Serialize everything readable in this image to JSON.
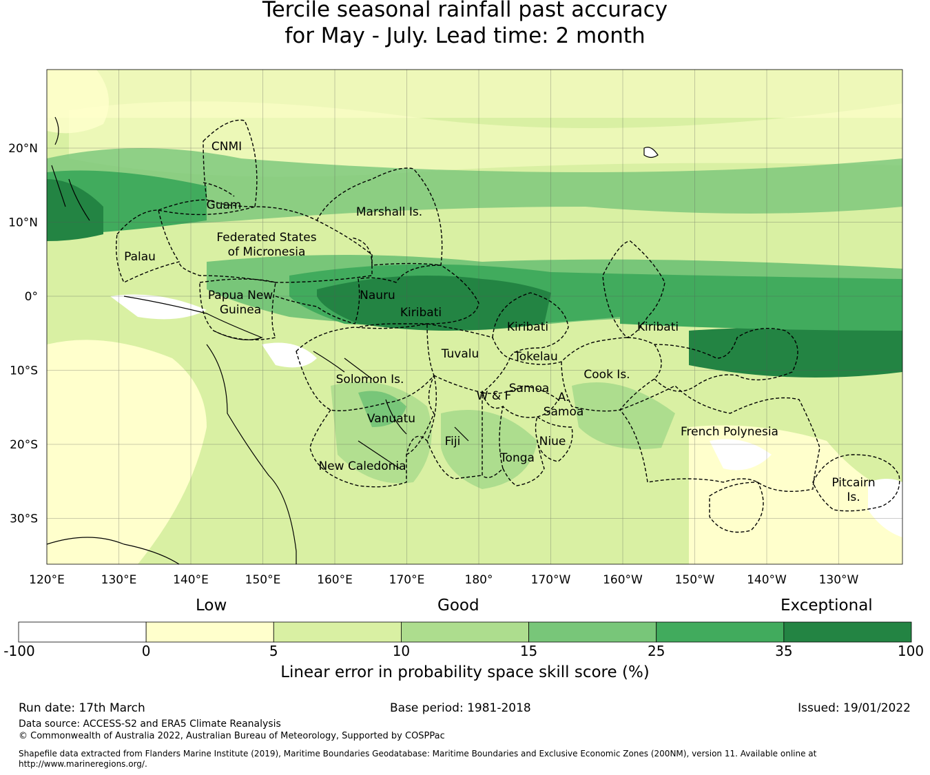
{
  "title_line1": "Tercile seasonal rainfall past accuracy",
  "title_line2": "for May - July. Lead time: 2 month",
  "map": {
    "lon_labels": [
      "120°E",
      "130°E",
      "140°E",
      "150°E",
      "160°E",
      "170°E",
      "180°",
      "170°W",
      "160°W",
      "150°W",
      "140°W",
      "130°W"
    ],
    "lat_labels": [
      "20°N",
      "10°N",
      "0°",
      "10°S",
      "20°S",
      "30°S"
    ],
    "regions": [
      "CNMI",
      "Guam",
      "Marshall Is.",
      "Federated States",
      "of Micronesia",
      "Palau",
      "Papua New",
      "Guinea",
      "Nauru",
      "Kiribati",
      "Kiribati",
      "Kiribati",
      "Tuvalu",
      "Tokelau",
      "Solomon Is.",
      "Samoa",
      "W & F",
      "A.",
      "Samoa",
      "Cook Is.",
      "Vanuatu",
      "Fiji",
      "Niue",
      "Tonga",
      "French Polynesia",
      "New Caledonia",
      "Pitcairn",
      "Is."
    ]
  },
  "colorbar": {
    "category_low": "Low",
    "category_good": "Good",
    "category_exceptional": "Exceptional",
    "ticks": [
      "-100",
      "0",
      "5",
      "10",
      "15",
      "25",
      "35",
      "100"
    ],
    "colors": [
      "#ffffff",
      "#ffffcc",
      "#d9f0a3",
      "#addd8e",
      "#78c679",
      "#41ab5d",
      "#238443"
    ],
    "label": "Linear error in probability space skill score (%)"
  },
  "footer": {
    "run_date": "Run date: 17th March",
    "base_period": "Base period: 1981-2018",
    "issued": "Issued: 19/01/2022",
    "data_source": "Data source: ACCESS-S2 and ERA5 Climate Reanalysis",
    "copyright": "© Commonwealth of Australia 2022, Australian Bureau of Meteorology, Supported by COSPPac",
    "shapefile_line1": "Shapefile data extracted from Flanders Marine Institute (2019), Maritime Boundaries Geodatabase: Maritime Boundaries and Exclusive Economic Zones (200NM), version 11. Available online at",
    "shapefile_line2": "http://www.marineregions.org/."
  }
}
